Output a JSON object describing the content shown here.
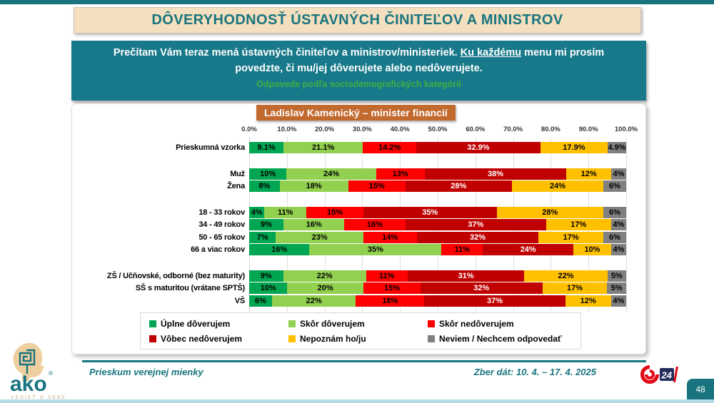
{
  "page": {
    "title": "DÔVERYHODNOSŤ ÚSTAVNÝCH ČINITEĽOV A MINISTROV",
    "page_number": "48"
  },
  "question": {
    "text_before": "Prečítam Vám teraz mená ústavných činiteľov a ministrov/ministeriek. ",
    "underlined": "Ku každému",
    "text_after": " menu mi prosím povedzte, či mu/jej dôverujete alebo nedôverujete.",
    "subtitle": "Odpovede podľa sociodemografických kategórií"
  },
  "person_badge": "Ladislav Kamenický – minister financií",
  "chart_data": {
    "type": "bar",
    "orientation": "horizontal",
    "stacked": true,
    "title": "Ladislav Kamenický – minister financií",
    "x_axis": {
      "range": [
        0,
        100
      ],
      "ticks": [
        "0.0%",
        "10.0%",
        "20.0%",
        "30.0%",
        "40.0%",
        "50.0%",
        "60.0%",
        "70.0%",
        "80.0%",
        "90.0%",
        "100.0%"
      ]
    },
    "grid": true,
    "legend_position": "bottom",
    "series": [
      {
        "name": "Úplne dôverujem",
        "color": "#00A651",
        "label_color": "#000000"
      },
      {
        "name": "Skôr dôverujem",
        "color": "#92D050",
        "label_color": "#000000"
      },
      {
        "name": "Skôr nedôverujem",
        "color": "#FE0000",
        "label_color": "#000000"
      },
      {
        "name": "Vôbec nedôverujem",
        "color": "#C00000",
        "label_color": "#FFFFFF"
      },
      {
        "name": "Nepoznám ho/ju",
        "color": "#FFC000",
        "label_color": "#000000"
      },
      {
        "name": "Neviem / Nechcem odpovedať",
        "color": "#808080",
        "label_color": "#000000"
      }
    ],
    "rows": [
      {
        "label": "Prieskumná vzorka",
        "group": 0,
        "values": [
          9.1,
          21.1,
          14.2,
          32.9,
          17.9,
          4.9
        ],
        "labels": [
          "9.1%",
          "21.1%",
          "14.2%",
          "32.9%",
          "17.9%",
          "4.9%"
        ]
      },
      {
        "label": "Muž",
        "group": 1,
        "values": [
          10,
          24,
          13,
          38,
          12,
          4
        ],
        "labels": [
          "10%",
          "24%",
          "13%",
          "38%",
          "12%",
          "4%"
        ]
      },
      {
        "label": "Žena",
        "group": 1,
        "values": [
          8,
          18,
          15,
          28,
          24,
          6
        ],
        "labels": [
          "8%",
          "18%",
          "15%",
          "28%",
          "24%",
          "6%"
        ]
      },
      {
        "label": "18 - 33 rokov",
        "group": 2,
        "values": [
          4,
          11,
          15,
          35,
          28,
          6
        ],
        "labels": [
          "4%",
          "11%",
          "15%",
          "35%",
          "28%",
          "6%"
        ]
      },
      {
        "label": "34 - 49 rokov",
        "group": 2,
        "values": [
          9,
          16,
          16,
          37,
          17,
          4
        ],
        "labels": [
          "9%",
          "16%",
          "16%",
          "37%",
          "17%",
          "4%"
        ]
      },
      {
        "label": "50 - 65 rokov",
        "group": 2,
        "values": [
          7,
          23,
          14,
          32,
          17,
          6
        ],
        "labels": [
          "7%",
          "23%",
          "14%",
          "32%",
          "17%",
          "6%"
        ]
      },
      {
        "label": "66 a viac rokov",
        "group": 2,
        "values": [
          16,
          35,
          11,
          24,
          10,
          4
        ],
        "labels": [
          "16%",
          "35%",
          "11%",
          "24%",
          "10%",
          "4%"
        ]
      },
      {
        "label": "ZŠ / Učňovské, odborné (bez maturity)",
        "group": 3,
        "values": [
          9,
          22,
          11,
          31,
          22,
          5
        ],
        "labels": [
          "9%",
          "22%",
          "11%",
          "31%",
          "22%",
          "5%"
        ]
      },
      {
        "label": "SŠ s maturitou (vrátane SPTŠ)",
        "group": 3,
        "values": [
          10,
          20,
          15,
          32,
          17,
          5
        ],
        "labels": [
          "10%",
          "20%",
          "15%",
          "32%",
          "17%",
          "5%"
        ]
      },
      {
        "label": "VŠ",
        "group": 3,
        "values": [
          6,
          22,
          18,
          37,
          12,
          4
        ],
        "labels": [
          "6%",
          "22%",
          "18%",
          "37%",
          "12%",
          "4%"
        ]
      }
    ]
  },
  "footer": {
    "survey_label": "Prieskum verejnej mienky",
    "collection_dates": "Zber dát: 10. 4. – 17. 4. 2025",
    "ako_logo": {
      "text": "ako",
      "tagline": "VEDIEŤ O SEBE"
    },
    "tv_logo": "24"
  },
  "colors": {
    "teal": "#19747F",
    "cream_title_bg": "#F4DFBE",
    "question_box_bg": "#18798A",
    "badge_orange": "#C2692E",
    "subtitle_green": "#3CB043"
  }
}
